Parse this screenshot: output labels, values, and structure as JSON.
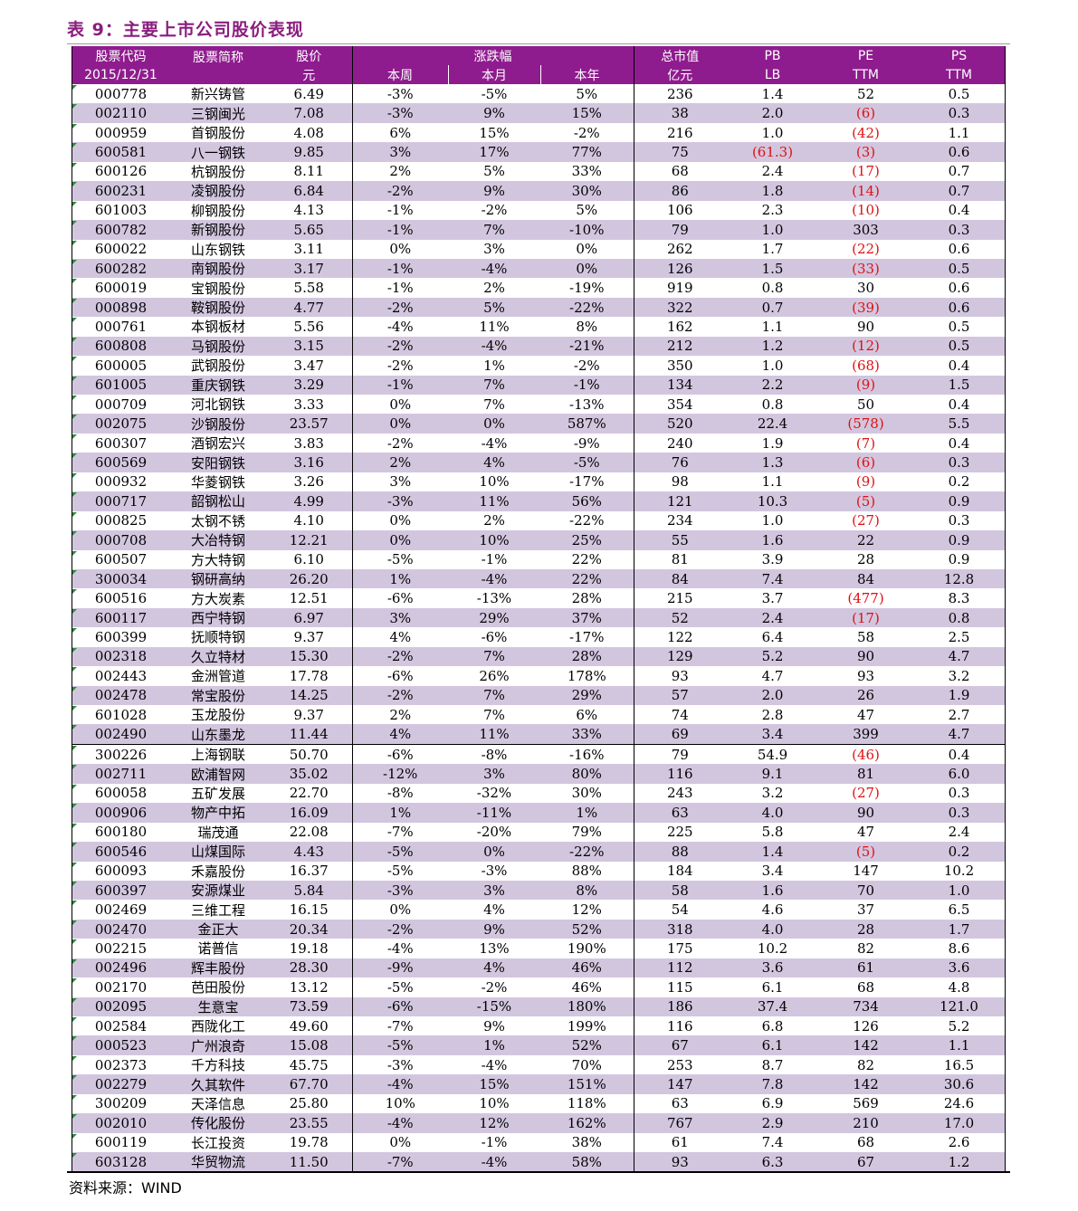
{
  "title": "表 9：主要上市公司股价表现",
  "header": {
    "code_l1": "股票代码",
    "code_l2": "2015/12/31",
    "name": "股票简称",
    "price_l1": "股价",
    "price_l2": "元",
    "change_group": "涨跌幅",
    "week": "本周",
    "month": "本月",
    "year": "本年",
    "mcap_l1": "总市值",
    "mcap_l2": "亿元",
    "pb_l1": "PB",
    "pb_l2": "LB",
    "pe_l1": "PE",
    "pe_l2": "TTM",
    "ps_l1": "PS",
    "ps_l2": "TTM"
  },
  "rows": [
    [
      "000778",
      "新兴铸管",
      "6.49",
      "-3%",
      "-5%",
      "5%",
      "236",
      "1.4",
      "52",
      "0.5"
    ],
    [
      "002110",
      "三钢闽光",
      "7.08",
      "-3%",
      "9%",
      "15%",
      "38",
      "2.0",
      "(6)",
      "0.3"
    ],
    [
      "000959",
      "首钢股份",
      "4.08",
      "6%",
      "15%",
      "-2%",
      "216",
      "1.0",
      "(42)",
      "1.1"
    ],
    [
      "600581",
      "八一钢铁",
      "9.85",
      "3%",
      "17%",
      "77%",
      "75",
      "(61.3)",
      "(3)",
      "0.6"
    ],
    [
      "600126",
      "杭钢股份",
      "8.11",
      "2%",
      "5%",
      "33%",
      "68",
      "2.4",
      "(17)",
      "0.7"
    ],
    [
      "600231",
      "凌钢股份",
      "6.84",
      "-2%",
      "9%",
      "30%",
      "86",
      "1.8",
      "(14)",
      "0.7"
    ],
    [
      "601003",
      "柳钢股份",
      "4.13",
      "-1%",
      "-2%",
      "5%",
      "106",
      "2.3",
      "(10)",
      "0.4"
    ],
    [
      "600782",
      "新钢股份",
      "5.65",
      "-1%",
      "7%",
      "-10%",
      "79",
      "1.0",
      "303",
      "0.3"
    ],
    [
      "600022",
      "山东钢铁",
      "3.11",
      "0%",
      "3%",
      "0%",
      "262",
      "1.7",
      "(22)",
      "0.6"
    ],
    [
      "600282",
      "南钢股份",
      "3.17",
      "-1%",
      "-4%",
      "0%",
      "126",
      "1.5",
      "(33)",
      "0.5"
    ],
    [
      "600019",
      "宝钢股份",
      "5.58",
      "-1%",
      "2%",
      "-19%",
      "919",
      "0.8",
      "30",
      "0.6"
    ],
    [
      "000898",
      "鞍钢股份",
      "4.77",
      "-2%",
      "5%",
      "-22%",
      "322",
      "0.7",
      "(39)",
      "0.6"
    ],
    [
      "000761",
      "本钢板材",
      "5.56",
      "-4%",
      "11%",
      "8%",
      "162",
      "1.1",
      "90",
      "0.5"
    ],
    [
      "600808",
      "马钢股份",
      "3.15",
      "-2%",
      "-4%",
      "-21%",
      "212",
      "1.2",
      "(12)",
      "0.5"
    ],
    [
      "600005",
      "武钢股份",
      "3.47",
      "-2%",
      "1%",
      "-2%",
      "350",
      "1.0",
      "(68)",
      "0.4"
    ],
    [
      "601005",
      "重庆钢铁",
      "3.29",
      "-1%",
      "7%",
      "-1%",
      "134",
      "2.2",
      "(9)",
      "1.5"
    ],
    [
      "000709",
      "河北钢铁",
      "3.33",
      "0%",
      "7%",
      "-13%",
      "354",
      "0.8",
      "50",
      "0.4"
    ],
    [
      "002075",
      "沙钢股份",
      "23.57",
      "0%",
      "0%",
      "587%",
      "520",
      "22.4",
      "(578)",
      "5.5"
    ],
    [
      "600307",
      "酒钢宏兴",
      "3.83",
      "-2%",
      "-4%",
      "-9%",
      "240",
      "1.9",
      "(7)",
      "0.4"
    ],
    [
      "600569",
      "安阳钢铁",
      "3.16",
      "2%",
      "4%",
      "-5%",
      "76",
      "1.3",
      "(6)",
      "0.3"
    ],
    [
      "000932",
      "华菱钢铁",
      "3.26",
      "3%",
      "10%",
      "-17%",
      "98",
      "1.1",
      "(9)",
      "0.2"
    ],
    [
      "000717",
      "韶钢松山",
      "4.99",
      "-3%",
      "11%",
      "56%",
      "121",
      "10.3",
      "(5)",
      "0.9"
    ],
    [
      "000825",
      "太钢不锈",
      "4.10",
      "0%",
      "2%",
      "-22%",
      "234",
      "1.0",
      "(27)",
      "0.3"
    ],
    [
      "000708",
      "大冶特钢",
      "12.21",
      "0%",
      "10%",
      "25%",
      "55",
      "1.6",
      "22",
      "0.9"
    ],
    [
      "600507",
      "方大特钢",
      "6.10",
      "-5%",
      "-1%",
      "22%",
      "81",
      "3.9",
      "28",
      "0.9"
    ],
    [
      "300034",
      "钢研高纳",
      "26.20",
      "1%",
      "-4%",
      "22%",
      "84",
      "7.4",
      "84",
      "12.8"
    ],
    [
      "600516",
      "方大炭素",
      "12.51",
      "-6%",
      "-13%",
      "28%",
      "215",
      "3.7",
      "(477)",
      "8.3"
    ],
    [
      "600117",
      "西宁特钢",
      "6.97",
      "3%",
      "29%",
      "37%",
      "52",
      "2.4",
      "(17)",
      "0.8"
    ],
    [
      "600399",
      "抚顺特钢",
      "9.37",
      "4%",
      "-6%",
      "-17%",
      "122",
      "6.4",
      "58",
      "2.5"
    ],
    [
      "002318",
      "久立特材",
      "15.30",
      "-2%",
      "7%",
      "28%",
      "129",
      "5.2",
      "90",
      "4.7"
    ],
    [
      "002443",
      "金洲管道",
      "17.78",
      "-6%",
      "26%",
      "178%",
      "93",
      "4.7",
      "93",
      "3.2"
    ],
    [
      "002478",
      "常宝股份",
      "14.25",
      "-2%",
      "7%",
      "29%",
      "57",
      "2.0",
      "26",
      "1.9"
    ],
    [
      "601028",
      "玉龙股份",
      "9.37",
      "2%",
      "7%",
      "6%",
      "74",
      "2.8",
      "47",
      "2.7"
    ],
    [
      "002490",
      "山东墨龙",
      "11.44",
      "4%",
      "11%",
      "33%",
      "69",
      "3.4",
      "399",
      "4.7"
    ],
    [
      "300226",
      "上海钢联",
      "50.70",
      "-6%",
      "-8%",
      "-16%",
      "79",
      "54.9",
      "(46)",
      "0.4"
    ],
    [
      "002711",
      "欧浦智网",
      "35.02",
      "-12%",
      "3%",
      "80%",
      "116",
      "9.1",
      "81",
      "6.0"
    ],
    [
      "600058",
      "五矿发展",
      "22.70",
      "-8%",
      "-32%",
      "30%",
      "243",
      "3.2",
      "(27)",
      "0.3"
    ],
    [
      "000906",
      "物产中拓",
      "16.09",
      "1%",
      "-11%",
      "1%",
      "63",
      "4.0",
      "90",
      "0.3"
    ],
    [
      "600180",
      "瑞茂通",
      "22.08",
      "-7%",
      "-20%",
      "79%",
      "225",
      "5.8",
      "47",
      "2.4"
    ],
    [
      "600546",
      "山煤国际",
      "4.43",
      "-5%",
      "0%",
      "-22%",
      "88",
      "1.4",
      "(5)",
      "0.2"
    ],
    [
      "600093",
      "禾嘉股份",
      "16.37",
      "-5%",
      "-3%",
      "88%",
      "184",
      "3.4",
      "147",
      "10.2"
    ],
    [
      "600397",
      "安源煤业",
      "5.84",
      "-3%",
      "3%",
      "8%",
      "58",
      "1.6",
      "70",
      "1.0"
    ],
    [
      "002469",
      "三维工程",
      "16.15",
      "0%",
      "4%",
      "12%",
      "54",
      "4.6",
      "37",
      "6.5"
    ],
    [
      "002470",
      "金正大",
      "20.34",
      "-2%",
      "9%",
      "52%",
      "318",
      "4.0",
      "28",
      "1.7"
    ],
    [
      "002215",
      "诺普信",
      "19.18",
      "-4%",
      "13%",
      "190%",
      "175",
      "10.2",
      "82",
      "8.6"
    ],
    [
      "002496",
      "辉丰股份",
      "28.30",
      "-9%",
      "4%",
      "46%",
      "112",
      "3.6",
      "61",
      "3.6"
    ],
    [
      "002170",
      "芭田股份",
      "13.12",
      "-5%",
      "-2%",
      "46%",
      "115",
      "6.1",
      "68",
      "4.8"
    ],
    [
      "002095",
      "生意宝",
      "73.59",
      "-6%",
      "-15%",
      "180%",
      "186",
      "37.4",
      "734",
      "121.0"
    ],
    [
      "002584",
      "西陇化工",
      "49.60",
      "-7%",
      "9%",
      "199%",
      "116",
      "6.8",
      "126",
      "5.2"
    ],
    [
      "000523",
      "广州浪奇",
      "15.08",
      "-5%",
      "1%",
      "52%",
      "67",
      "6.1",
      "142",
      "1.1"
    ],
    [
      "002373",
      "千方科技",
      "45.75",
      "-3%",
      "-4%",
      "70%",
      "253",
      "8.7",
      "82",
      "16.5"
    ],
    [
      "002279",
      "久其软件",
      "67.70",
      "-4%",
      "15%",
      "151%",
      "147",
      "7.8",
      "142",
      "30.6"
    ],
    [
      "300209",
      "天泽信息",
      "25.80",
      "10%",
      "10%",
      "118%",
      "63",
      "6.9",
      "569",
      "24.6"
    ],
    [
      "002010",
      "传化股份",
      "23.55",
      "-4%",
      "12%",
      "162%",
      "767",
      "2.9",
      "210",
      "17.0"
    ],
    [
      "600119",
      "长江投资",
      "19.78",
      "0%",
      "-1%",
      "38%",
      "61",
      "7.4",
      "68",
      "2.6"
    ],
    [
      "603128",
      "华贸物流",
      "11.50",
      "-7%",
      "-4%",
      "58%",
      "93",
      "6.3",
      "67",
      "1.2"
    ]
  ],
  "separator_before_row": 34,
  "source": "资料来源：WIND"
}
